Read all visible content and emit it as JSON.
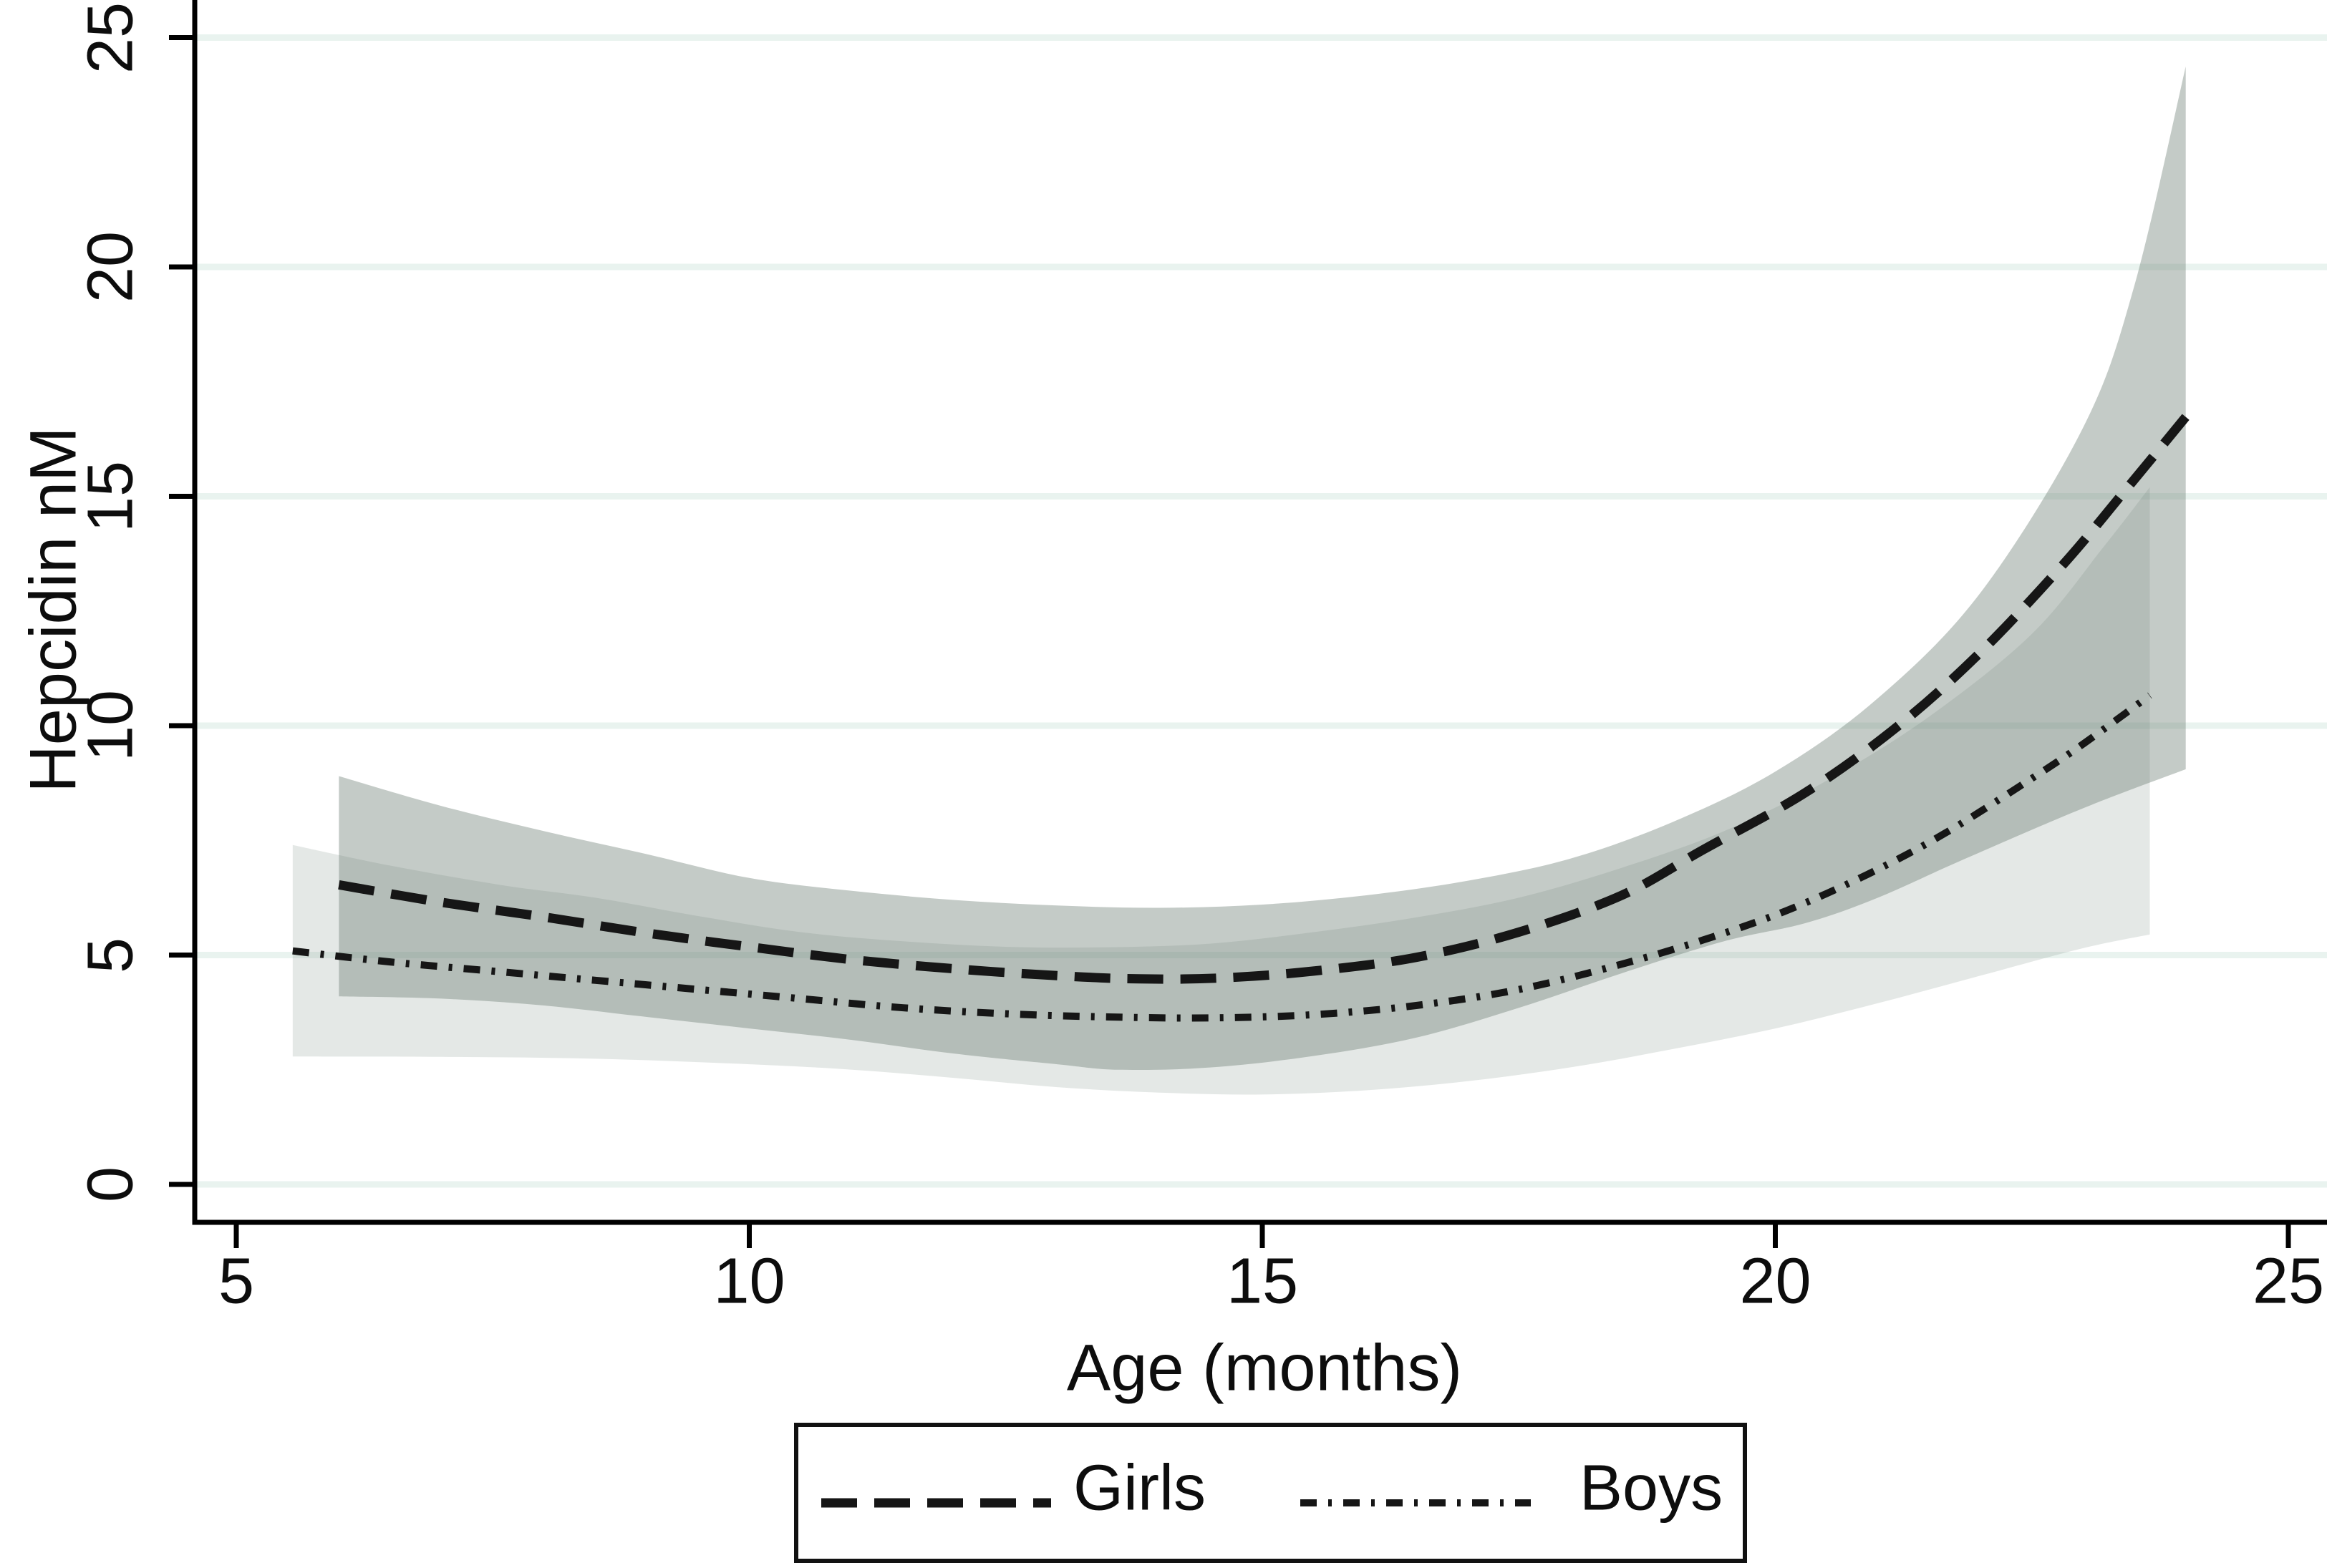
{
  "colors": {
    "background": "#ffffff",
    "text": "#0d0d0d",
    "axis": "#000000",
    "line": "#161616",
    "gridline": "#e9f3ef",
    "girls_band": "rgba(108,125,115,0.40)",
    "boys_band": "rgba(130,148,140,0.22)",
    "legend_border": "#111111"
  },
  "legend": {
    "items": [
      {
        "label": "Girls",
        "style": "dashed"
      },
      {
        "label": "Boys",
        "style": "dash-dot"
      }
    ]
  },
  "chart_data": {
    "type": "line",
    "title": "",
    "xlabel": "Age (months)",
    "ylabel": "Hepcidin nM",
    "xlim": [
      5,
      25
    ],
    "ylim": [
      0,
      25
    ],
    "x_ticks": [
      5,
      10,
      15,
      20,
      25
    ],
    "x_tick_labels": [
      "5",
      "10",
      "15",
      "20",
      "25"
    ],
    "y_ticks": [
      0,
      5,
      10,
      15,
      20,
      25
    ],
    "y_tick_labels": [
      "0",
      "5",
      "10",
      "15",
      "20",
      "25"
    ],
    "grid": "horizontal-light",
    "legend_position": "bottom-center",
    "series": [
      {
        "name": "Girls",
        "style": "dashed",
        "points": [
          [
            6.0,
            6.53
          ],
          [
            7.0,
            6.15
          ],
          [
            8.0,
            5.83
          ],
          [
            9.0,
            5.48
          ],
          [
            10.0,
            5.18
          ],
          [
            11.0,
            4.9
          ],
          [
            12.0,
            4.7
          ],
          [
            13.0,
            4.55
          ],
          [
            13.8,
            4.48
          ],
          [
            14.6,
            4.5
          ],
          [
            15.5,
            4.65
          ],
          [
            16.5,
            4.95
          ],
          [
            17.5,
            5.5
          ],
          [
            18.5,
            6.3
          ],
          [
            19.3,
            7.3
          ],
          [
            20.3,
            8.55
          ],
          [
            21.2,
            10.0
          ],
          [
            22.0,
            11.6
          ],
          [
            22.8,
            13.5
          ],
          [
            23.4,
            15.1
          ],
          [
            24.0,
            16.73
          ]
        ]
      },
      {
        "name": "Boys",
        "style": "dash-dot",
        "points": [
          [
            5.55,
            5.09
          ],
          [
            6.5,
            4.85
          ],
          [
            7.6,
            4.63
          ],
          [
            8.5,
            4.45
          ],
          [
            9.5,
            4.25
          ],
          [
            10.5,
            4.05
          ],
          [
            11.5,
            3.85
          ],
          [
            12.5,
            3.72
          ],
          [
            13.5,
            3.65
          ],
          [
            14.5,
            3.63
          ],
          [
            15.5,
            3.7
          ],
          [
            16.5,
            3.9
          ],
          [
            17.5,
            4.25
          ],
          [
            18.5,
            4.8
          ],
          [
            19.3,
            5.33
          ],
          [
            20.1,
            5.96
          ],
          [
            20.9,
            6.76
          ],
          [
            21.65,
            7.65
          ],
          [
            22.5,
            8.85
          ],
          [
            23.0,
            9.6
          ],
          [
            23.65,
            10.66
          ]
        ]
      }
    ],
    "bands": [
      {
        "name": "Boys 95% CI",
        "series": "Boys",
        "upper": [
          [
            5.55,
            7.4
          ],
          [
            6.5,
            6.95
          ],
          [
            7.6,
            6.52
          ],
          [
            8.5,
            6.25
          ],
          [
            9.5,
            5.85
          ],
          [
            10.5,
            5.5
          ],
          [
            11.5,
            5.3
          ],
          [
            12.5,
            5.18
          ],
          [
            13.5,
            5.17
          ],
          [
            14.5,
            5.25
          ],
          [
            15.5,
            5.5
          ],
          [
            16.5,
            5.82
          ],
          [
            17.5,
            6.25
          ],
          [
            18.5,
            6.9
          ],
          [
            19.5,
            7.7
          ],
          [
            20.5,
            8.8
          ],
          [
            21.5,
            10.2
          ],
          [
            22.5,
            12.0
          ],
          [
            23.2,
            13.9
          ],
          [
            23.65,
            15.2
          ]
        ],
        "lower": [
          [
            5.55,
            2.79
          ],
          [
            7.0,
            2.78
          ],
          [
            8.5,
            2.74
          ],
          [
            10.0,
            2.62
          ],
          [
            11.0,
            2.5
          ],
          [
            12.0,
            2.32
          ],
          [
            13.0,
            2.12
          ],
          [
            14.0,
            2.0
          ],
          [
            15.0,
            1.96
          ],
          [
            16.0,
            2.05
          ],
          [
            17.0,
            2.25
          ],
          [
            18.0,
            2.55
          ],
          [
            19.0,
            2.95
          ],
          [
            20.0,
            3.4
          ],
          [
            21.0,
            3.95
          ],
          [
            22.0,
            4.55
          ],
          [
            23.0,
            5.15
          ],
          [
            23.65,
            5.45
          ]
        ]
      },
      {
        "name": "Girls 95% CI",
        "series": "Girls",
        "upper": [
          [
            6.0,
            8.9
          ],
          [
            7.0,
            8.25
          ],
          [
            8.0,
            7.7
          ],
          [
            9.0,
            7.2
          ],
          [
            10.0,
            6.68
          ],
          [
            11.0,
            6.4
          ],
          [
            12.0,
            6.2
          ],
          [
            13.0,
            6.08
          ],
          [
            14.0,
            6.03
          ],
          [
            15.0,
            6.1
          ],
          [
            16.0,
            6.3
          ],
          [
            17.0,
            6.62
          ],
          [
            18.0,
            7.1
          ],
          [
            19.0,
            7.9
          ],
          [
            20.0,
            9.0
          ],
          [
            21.0,
            10.6
          ],
          [
            22.0,
            12.9
          ],
          [
            23.0,
            16.5
          ],
          [
            23.5,
            19.6
          ],
          [
            24.0,
            24.37
          ]
        ],
        "lower": [
          [
            6.0,
            4.1
          ],
          [
            7.0,
            4.05
          ],
          [
            8.0,
            3.9
          ],
          [
            9.0,
            3.65
          ],
          [
            10.0,
            3.4
          ],
          [
            11.0,
            3.15
          ],
          [
            12.0,
            2.85
          ],
          [
            13.0,
            2.62
          ],
          [
            13.6,
            2.5
          ],
          [
            14.5,
            2.55
          ],
          [
            15.5,
            2.8
          ],
          [
            16.5,
            3.2
          ],
          [
            17.5,
            3.85
          ],
          [
            18.5,
            4.6
          ],
          [
            19.5,
            5.3
          ],
          [
            20.3,
            5.7
          ],
          [
            21.0,
            6.25
          ],
          [
            21.8,
            7.05
          ],
          [
            23.0,
            8.2
          ],
          [
            24.0,
            9.05
          ]
        ]
      }
    ]
  }
}
